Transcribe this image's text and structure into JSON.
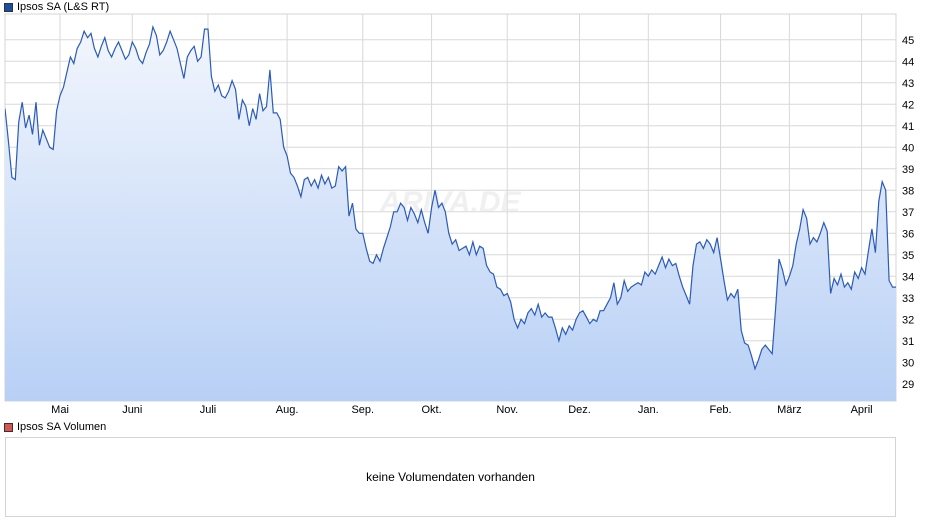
{
  "price_legend": {
    "label": "Ipsos SA (L&S RT)",
    "color": "#1a4fa0"
  },
  "volume_legend": {
    "label": "Ipsos SA Volumen",
    "color": "#d9534f"
  },
  "volume_message": "keine Volumendaten vorhanden",
  "watermark": "ARIVA.DE",
  "colors": {
    "line": "#2a5bb8",
    "fill_top": "#f2f6fd",
    "fill_bottom": "#b8d0f5",
    "grid": "#d8d8d8"
  },
  "chart_data": {
    "type": "area",
    "title": "",
    "xlabel": "",
    "ylabel": "",
    "ylim": [
      28.2,
      46.2
    ],
    "yticks": [
      29,
      30,
      31,
      32,
      33,
      34,
      35,
      36,
      37,
      38,
      39,
      40,
      41,
      42,
      43,
      44,
      45
    ],
    "xticks": [
      {
        "label": "Mai",
        "x": 16
      },
      {
        "label": "Juni",
        "x": 37
      },
      {
        "label": "Juli",
        "x": 59
      },
      {
        "label": "Aug.",
        "x": 82
      },
      {
        "label": "Sep.",
        "x": 104
      },
      {
        "label": "Okt.",
        "x": 124
      },
      {
        "label": "Nov.",
        "x": 146
      },
      {
        "label": "Dez.",
        "x": 167
      },
      {
        "label": "Jan.",
        "x": 187
      },
      {
        "label": "Feb.",
        "x": 208
      },
      {
        "label": "März",
        "x": 228
      },
      {
        "label": "April",
        "x": 249
      }
    ],
    "x_range": [
      0,
      259
    ],
    "grid": true,
    "legend": "top-left",
    "series": [
      {
        "name": "Ipsos SA (L&S RT)",
        "points": [
          [
            0,
            41.8
          ],
          [
            1,
            40.3
          ],
          [
            2,
            38.6
          ],
          [
            3,
            38.5
          ],
          [
            4,
            41.2
          ],
          [
            5,
            42.1
          ],
          [
            6,
            40.9
          ],
          [
            7,
            41.5
          ],
          [
            8,
            40.6
          ],
          [
            9,
            42.1
          ],
          [
            10,
            40.1
          ],
          [
            11,
            40.8
          ],
          [
            12,
            40.4
          ],
          [
            13,
            40.0
          ],
          [
            14,
            39.9
          ],
          [
            15,
            41.7
          ],
          [
            16,
            42.4
          ],
          [
            17,
            42.8
          ],
          [
            18,
            43.5
          ],
          [
            19,
            44.2
          ],
          [
            20,
            43.9
          ],
          [
            21,
            44.6
          ],
          [
            22,
            44.9
          ],
          [
            23,
            45.4
          ],
          [
            24,
            45.1
          ],
          [
            25,
            45.3
          ],
          [
            26,
            44.6
          ],
          [
            27,
            44.2
          ],
          [
            28,
            44.7
          ],
          [
            29,
            45.1
          ],
          [
            30,
            44.5
          ],
          [
            31,
            44.2
          ],
          [
            32,
            44.6
          ],
          [
            33,
            44.9
          ],
          [
            34,
            44.5
          ],
          [
            35,
            44.1
          ],
          [
            36,
            44.3
          ],
          [
            37,
            44.9
          ],
          [
            38,
            44.6
          ],
          [
            39,
            44.1
          ],
          [
            40,
            43.9
          ],
          [
            41,
            44.4
          ],
          [
            42,
            44.8
          ],
          [
            43,
            45.6
          ],
          [
            44,
            45.2
          ],
          [
            45,
            44.3
          ],
          [
            46,
            44.5
          ],
          [
            47,
            44.9
          ],
          [
            48,
            45.4
          ],
          [
            49,
            45.0
          ],
          [
            50,
            44.6
          ],
          [
            51,
            43.9
          ],
          [
            52,
            43.2
          ],
          [
            53,
            44.2
          ],
          [
            54,
            44.5
          ],
          [
            55,
            44.7
          ],
          [
            56,
            44.0
          ],
          [
            57,
            44.2
          ],
          [
            58,
            45.5
          ],
          [
            59,
            45.5
          ],
          [
            60,
            43.3
          ],
          [
            61,
            42.6
          ],
          [
            62,
            42.9
          ],
          [
            63,
            42.4
          ],
          [
            64,
            42.3
          ],
          [
            65,
            42.6
          ],
          [
            66,
            43.1
          ],
          [
            67,
            42.7
          ],
          [
            68,
            41.3
          ],
          [
            69,
            42.2
          ],
          [
            70,
            41.9
          ],
          [
            71,
            41.0
          ],
          [
            72,
            41.8
          ],
          [
            73,
            41.3
          ],
          [
            74,
            42.5
          ],
          [
            75,
            41.7
          ],
          [
            76,
            41.9
          ],
          [
            77,
            43.6
          ],
          [
            78,
            41.6
          ],
          [
            79,
            41.6
          ],
          [
            80,
            41.3
          ],
          [
            81,
            40.0
          ],
          [
            82,
            39.6
          ],
          [
            83,
            38.8
          ],
          [
            84,
            38.6
          ],
          [
            85,
            38.2
          ],
          [
            86,
            37.7
          ],
          [
            87,
            38.5
          ],
          [
            88,
            38.6
          ],
          [
            89,
            38.2
          ],
          [
            90,
            38.5
          ],
          [
            91,
            38.1
          ],
          [
            92,
            38.7
          ],
          [
            93,
            38.3
          ],
          [
            94,
            38.6
          ],
          [
            95,
            38.1
          ],
          [
            96,
            38.2
          ],
          [
            97,
            39.1
          ],
          [
            98,
            38.9
          ],
          [
            99,
            39.1
          ],
          [
            100,
            36.8
          ],
          [
            101,
            37.4
          ],
          [
            102,
            36.2
          ],
          [
            103,
            36.0
          ],
          [
            104,
            36.0
          ],
          [
            105,
            35.3
          ],
          [
            106,
            34.7
          ],
          [
            107,
            34.6
          ],
          [
            108,
            35.0
          ],
          [
            109,
            34.7
          ],
          [
            110,
            35.3
          ],
          [
            111,
            35.8
          ],
          [
            112,
            36.3
          ],
          [
            113,
            37.0
          ],
          [
            114,
            37.0
          ],
          [
            115,
            37.4
          ],
          [
            116,
            37.2
          ],
          [
            117,
            36.6
          ],
          [
            118,
            37.2
          ],
          [
            119,
            36.9
          ],
          [
            120,
            36.5
          ],
          [
            121,
            37.1
          ],
          [
            122,
            36.5
          ],
          [
            123,
            36.0
          ],
          [
            124,
            37.2
          ],
          [
            125,
            38.0
          ],
          [
            126,
            37.2
          ],
          [
            127,
            37.4
          ],
          [
            128,
            37.0
          ],
          [
            129,
            36.0
          ],
          [
            130,
            35.5
          ],
          [
            131,
            35.7
          ],
          [
            132,
            35.2
          ],
          [
            133,
            35.3
          ],
          [
            134,
            35.4
          ],
          [
            135,
            35.0
          ],
          [
            136,
            35.6
          ],
          [
            137,
            35.0
          ],
          [
            138,
            35.4
          ],
          [
            139,
            35.3
          ],
          [
            140,
            34.5
          ],
          [
            141,
            34.2
          ],
          [
            142,
            34.1
          ],
          [
            143,
            33.5
          ],
          [
            144,
            33.4
          ],
          [
            145,
            33.1
          ],
          [
            146,
            33.2
          ],
          [
            147,
            32.8
          ],
          [
            148,
            32.0
          ],
          [
            149,
            31.6
          ],
          [
            150,
            32.0
          ],
          [
            151,
            31.8
          ],
          [
            152,
            32.3
          ],
          [
            153,
            32.5
          ],
          [
            154,
            32.2
          ],
          [
            155,
            32.7
          ],
          [
            156,
            32.1
          ],
          [
            157,
            32.3
          ],
          [
            158,
            32.1
          ],
          [
            159,
            32.1
          ],
          [
            160,
            31.6
          ],
          [
            161,
            31.0
          ],
          [
            162,
            31.6
          ],
          [
            163,
            31.3
          ],
          [
            164,
            31.7
          ],
          [
            165,
            31.5
          ],
          [
            166,
            32.0
          ],
          [
            167,
            32.3
          ],
          [
            168,
            32.4
          ],
          [
            169,
            32.1
          ],
          [
            170,
            31.8
          ],
          [
            171,
            32.0
          ],
          [
            172,
            31.9
          ],
          [
            173,
            32.4
          ],
          [
            174,
            32.4
          ],
          [
            175,
            32.7
          ],
          [
            176,
            33.0
          ],
          [
            177,
            33.7
          ],
          [
            178,
            32.7
          ],
          [
            179,
            33.0
          ],
          [
            180,
            33.8
          ],
          [
            181,
            33.3
          ],
          [
            182,
            33.5
          ],
          [
            183,
            33.6
          ],
          [
            184,
            33.7
          ],
          [
            185,
            33.6
          ],
          [
            186,
            34.2
          ],
          [
            187,
            34.0
          ],
          [
            188,
            34.3
          ],
          [
            189,
            34.1
          ],
          [
            190,
            34.5
          ],
          [
            191,
            34.9
          ],
          [
            192,
            34.4
          ],
          [
            193,
            34.8
          ],
          [
            194,
            34.5
          ],
          [
            195,
            34.6
          ],
          [
            196,
            34.0
          ],
          [
            197,
            33.5
          ],
          [
            198,
            33.1
          ],
          [
            199,
            32.7
          ],
          [
            200,
            34.5
          ],
          [
            201,
            35.5
          ],
          [
            202,
            35.6
          ],
          [
            203,
            35.3
          ],
          [
            204,
            35.7
          ],
          [
            205,
            35.5
          ],
          [
            206,
            35.1
          ],
          [
            207,
            35.8
          ],
          [
            208,
            34.8
          ],
          [
            209,
            33.8
          ],
          [
            210,
            32.9
          ],
          [
            211,
            33.2
          ],
          [
            212,
            33.0
          ],
          [
            213,
            33.4
          ],
          [
            214,
            31.5
          ],
          [
            215,
            30.9
          ],
          [
            216,
            30.8
          ],
          [
            217,
            30.3
          ],
          [
            218,
            29.7
          ],
          [
            219,
            30.1
          ],
          [
            220,
            30.6
          ],
          [
            221,
            30.8
          ],
          [
            222,
            30.6
          ],
          [
            223,
            30.4
          ],
          [
            224,
            32.5
          ],
          [
            225,
            34.8
          ],
          [
            226,
            34.3
          ],
          [
            227,
            33.6
          ],
          [
            228,
            34.0
          ],
          [
            229,
            34.5
          ],
          [
            230,
            35.5
          ],
          [
            231,
            36.2
          ],
          [
            232,
            37.1
          ],
          [
            233,
            36.7
          ],
          [
            234,
            35.5
          ],
          [
            235,
            35.8
          ],
          [
            236,
            35.6
          ],
          [
            237,
            36.0
          ],
          [
            238,
            36.5
          ],
          [
            239,
            36.1
          ],
          [
            240,
            33.2
          ],
          [
            241,
            33.9
          ],
          [
            242,
            33.6
          ],
          [
            243,
            34.1
          ],
          [
            244,
            33.5
          ],
          [
            245,
            33.7
          ],
          [
            246,
            33.4
          ],
          [
            247,
            34.2
          ],
          [
            248,
            33.9
          ],
          [
            249,
            34.4
          ],
          [
            250,
            34.1
          ],
          [
            251,
            35.2
          ],
          [
            252,
            36.2
          ],
          [
            253,
            35.1
          ],
          [
            254,
            37.5
          ],
          [
            255,
            38.4
          ],
          [
            256,
            38.0
          ],
          [
            257,
            33.8
          ],
          [
            258,
            33.5
          ],
          [
            259,
            33.5
          ]
        ]
      }
    ]
  }
}
